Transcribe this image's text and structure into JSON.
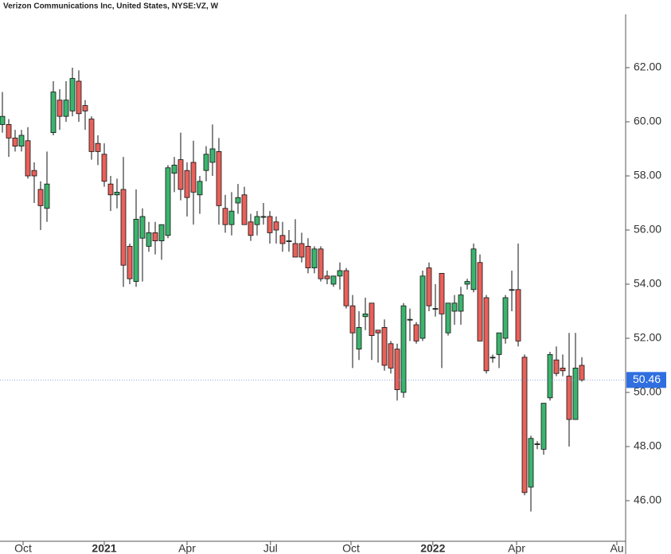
{
  "chart_data": {
    "type": "candlestick",
    "title": "Verizon Communications Inc, United States, NYSE:VZ, W",
    "open": [
      59.9,
      59.9,
      59.4,
      59.1,
      59.3,
      58.2,
      57.5,
      56.8,
      59.6,
      60.8,
      60.2,
      60.4,
      61.5,
      60.6,
      60.1,
      59.2,
      58.8,
      57.7,
      57.3,
      57.5,
      55.4,
      54.1,
      55.7,
      55.4,
      55.9,
      55.6,
      55.8,
      58.1,
      58.6,
      58.2,
      58.5,
      57.3,
      58.2,
      58.5,
      58.9,
      56.8,
      56.2,
      57.0,
      57.3,
      56.3,
      56.2,
      56.5,
      56.5,
      56.3,
      55.8,
      55.6,
      55.5,
      55.5,
      55.4,
      54.6,
      55.3,
      54.3,
      54.0,
      54.3,
      54.5,
      53.2,
      51.6,
      52.8,
      53.3,
      52.3,
      52.4,
      51.8,
      51.6,
      50.0,
      52.7,
      52.5,
      52.0,
      54.6,
      53.1,
      54.4,
      52.2,
      53.0,
      53.0,
      54.0,
      53.8,
      54.8,
      53.5,
      51.3,
      51.4,
      52.0,
      53.8,
      53.8,
      51.3,
      46.5,
      48.1,
      47.9,
      49.8,
      51.2,
      50.9,
      50.6,
      49.0,
      51.0
    ],
    "high": [
      61.1,
      60.1,
      59.7,
      59.7,
      59.8,
      58.5,
      57.8,
      58.9,
      61.5,
      61.2,
      61.5,
      62.0,
      61.9,
      60.8,
      60.2,
      59.5,
      59.2,
      58.0,
      57.9,
      58.7,
      55.5,
      57.5,
      56.8,
      56.3,
      56.3,
      56.2,
      58.4,
      58.7,
      59.6,
      58.5,
      59.3,
      58.0,
      59.1,
      59.9,
      59.4,
      57.3,
      57.4,
      57.7,
      57.6,
      56.6,
      56.7,
      57.0,
      56.7,
      56.5,
      56.3,
      56.0,
      56.4,
      55.9,
      55.7,
      55.4,
      55.4,
      54.5,
      54.3,
      54.8,
      54.6,
      53.6,
      53.0,
      53.5,
      53.3,
      52.3,
      52.7,
      51.9,
      51.8,
      53.3,
      53.1,
      52.6,
      54.5,
      54.8,
      54.0,
      54.4,
      53.3,
      53.6,
      53.9,
      54.2,
      55.5,
      55.1,
      53.6,
      51.4,
      52.2,
      53.6,
      54.5,
      55.5,
      51.4,
      48.4,
      48.2,
      49.6,
      51.5,
      51.7,
      51.4,
      52.2,
      52.2,
      51.3
    ],
    "low": [
      59.6,
      58.7,
      58.9,
      58.9,
      57.9,
      57.0,
      56.0,
      56.3,
      59.5,
      59.7,
      60.0,
      60.2,
      60.0,
      59.7,
      58.6,
      58.4,
      57.6,
      56.7,
      56.8,
      53.9,
      54.0,
      53.9,
      54.1,
      55.2,
      55.1,
      54.9,
      55.7,
      57.4,
      57.1,
      56.5,
      56.2,
      56.6,
      57.8,
      58.0,
      56.2,
      55.9,
      55.8,
      56.6,
      56.2,
      55.6,
      55.8,
      56.2,
      55.5,
      55.5,
      55.2,
      55.2,
      55.0,
      54.8,
      54.4,
      54.4,
      54.1,
      54.0,
      53.9,
      53.8,
      53.1,
      50.9,
      51.2,
      52.3,
      51.2,
      51.1,
      50.8,
      50.7,
      49.7,
      49.8,
      51.9,
      51.8,
      51.9,
      53.0,
      52.8,
      50.9,
      52.1,
      52.5,
      52.5,
      53.8,
      53.7,
      51.9,
      50.7,
      51.1,
      50.9,
      51.8,
      53.0,
      51.7,
      46.2,
      45.6,
      47.9,
      47.7,
      49.7,
      50.6,
      50.6,
      48.0,
      49.0,
      50.4
    ],
    "close": [
      60.2,
      59.4,
      59.1,
      59.5,
      58.0,
      58.0,
      56.9,
      57.7,
      61.1,
      60.2,
      60.8,
      61.6,
      60.3,
      60.4,
      58.9,
      58.9,
      57.8,
      57.3,
      57.4,
      54.7,
      54.2,
      56.4,
      56.5,
      55.9,
      55.6,
      56.2,
      58.3,
      58.4,
      57.5,
      57.2,
      57.4,
      57.8,
      58.8,
      59.0,
      56.9,
      56.2,
      56.7,
      57.2,
      56.2,
      55.8,
      56.5,
      56.5,
      55.9,
      56.0,
      55.5,
      55.6,
      55.0,
      55.0,
      54.6,
      55.3,
      54.2,
      54.2,
      54.3,
      54.5,
      53.2,
      52.2,
      52.4,
      52.9,
      52.1,
      52.2,
      51.0,
      50.9,
      50.1,
      53.2,
      52.7,
      51.9,
      54.3,
      53.2,
      53.1,
      52.9,
      53.3,
      53.3,
      53.6,
      54.1,
      55.3,
      51.9,
      50.8,
      51.3,
      52.2,
      53.5,
      53.8,
      51.9,
      46.3,
      48.3,
      48.1,
      49.6,
      51.4,
      50.7,
      50.8,
      49.0,
      50.9,
      50.46
    ],
    "up_color": "#3cb46e",
    "down_color": "#e8615a",
    "last_price": 50.46,
    "ylim": [
      44.5,
      63.97
    ],
    "yticks": [
      {
        "value": 46,
        "label": "46.00"
      },
      {
        "value": 48,
        "label": "48.00"
      },
      {
        "value": 50,
        "label": "50.00"
      },
      {
        "value": 52,
        "label": "52.00"
      },
      {
        "value": 54,
        "label": "54.00"
      },
      {
        "value": 56,
        "label": "56.00"
      },
      {
        "value": 58,
        "label": "58.00"
      },
      {
        "value": 60,
        "label": "60.00"
      },
      {
        "value": 62,
        "label": "62.00"
      }
    ],
    "xlim": [
      -0.375,
      97.75
    ],
    "xticks": [
      {
        "value": 3.25,
        "label": "Oct"
      },
      {
        "value": 16,
        "label": "2021"
      },
      {
        "value": 29,
        "label": "Apr"
      },
      {
        "value": 42.1,
        "label": "Jul"
      },
      {
        "value": 54.75,
        "label": "Oct"
      },
      {
        "value": 67.6,
        "label": "2022"
      },
      {
        "value": 80.75,
        "label": "Apr"
      },
      {
        "value": 96.5,
        "label": "Au"
      }
    ]
  }
}
